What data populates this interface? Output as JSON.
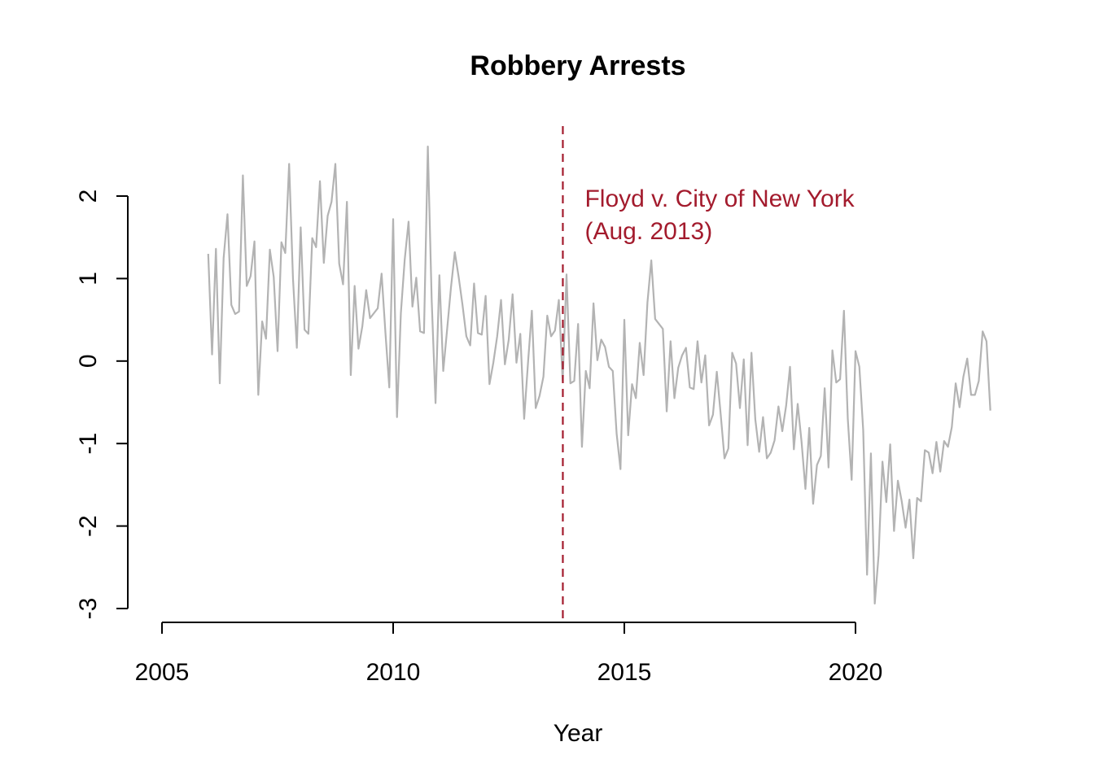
{
  "chart_data": {
    "type": "line",
    "title": "Robbery Arrests",
    "xlabel": "Year",
    "ylabel": "",
    "xlim": [
      2005,
      2020
    ],
    "ylim": [
      -3,
      2
    ],
    "x_ticks": [
      2005,
      2010,
      2015,
      2020
    ],
    "y_ticks": [
      -3,
      -2,
      -1,
      0,
      1,
      2
    ],
    "grid": false,
    "legend": "none",
    "series": [
      {
        "color": "#b3b3b3",
        "start": "2006-01",
        "frequency": "monthly",
        "values": [
          1.3,
          0.08,
          1.36,
          -0.27,
          1.25,
          1.78,
          0.68,
          0.57,
          0.6,
          2.25,
          0.91,
          1.03,
          1.45,
          -0.41,
          0.48,
          0.27,
          1.35,
          1.02,
          0.12,
          1.44,
          1.31,
          2.39,
          1.0,
          0.16,
          1.62,
          0.38,
          0.33,
          1.49,
          1.38,
          2.18,
          1.19,
          1.76,
          1.93,
          2.39,
          1.18,
          0.93,
          1.93,
          -0.17,
          0.91,
          0.15,
          0.42,
          0.86,
          0.52,
          0.58,
          0.64,
          1.06,
          0.34,
          -0.32,
          1.72,
          -0.68,
          0.58,
          1.23,
          1.69,
          0.66,
          1.01,
          0.36,
          0.34,
          2.6,
          0.74,
          -0.51,
          1.04,
          -0.12,
          0.38,
          0.89,
          1.32,
          1.02,
          0.68,
          0.3,
          0.19,
          0.94,
          0.34,
          0.32,
          0.79,
          -0.28,
          -0.02,
          0.3,
          0.74,
          -0.04,
          0.26,
          0.81,
          -0.02,
          0.33,
          -0.7,
          -0.02,
          0.61,
          -0.57,
          -0.42,
          -0.19,
          0.55,
          0.3,
          0.37,
          0.74,
          -0.24,
          1.05,
          -0.27,
          -0.24,
          0.45,
          -1.04,
          -0.12,
          -0.33,
          0.7,
          0.01,
          0.26,
          0.17,
          -0.07,
          -0.12,
          -0.88,
          -1.31,
          0.5,
          -0.9,
          -0.28,
          -0.45,
          0.22,
          -0.17,
          0.71,
          1.22,
          0.51,
          0.45,
          0.39,
          -0.61,
          0.24,
          -0.45,
          -0.08,
          0.07,
          0.16,
          -0.32,
          -0.34,
          0.24,
          -0.26,
          0.07,
          -0.78,
          -0.65,
          -0.13,
          -0.64,
          -1.18,
          -1.06,
          0.1,
          -0.03,
          -0.57,
          0.02,
          -1.02,
          0.1,
          -0.71,
          -1.1,
          -0.68,
          -1.18,
          -1.11,
          -0.96,
          -0.55,
          -0.85,
          -0.54,
          -0.07,
          -1.07,
          -0.52,
          -0.98,
          -1.55,
          -0.81,
          -1.73,
          -1.26,
          -1.15,
          -0.33,
          -1.29,
          0.13,
          -0.26,
          -0.22,
          0.61,
          -0.7,
          -1.44,
          0.12,
          -0.07,
          -0.84,
          -2.59,
          -1.12,
          -2.94,
          -2.35,
          -1.22,
          -1.71,
          -1.01,
          -2.06,
          -1.45,
          -1.7,
          -2.02,
          -1.68,
          -2.39,
          -1.66,
          -1.7,
          -1.08,
          -1.11,
          -1.36,
          -0.98,
          -1.34,
          -0.97,
          -1.04,
          -0.8,
          -0.27,
          -0.56,
          -0.19,
          0.03,
          -0.41,
          -0.41,
          -0.24,
          0.36,
          0.24,
          -0.6
        ]
      }
    ],
    "annotations": [
      {
        "x": 2013.67,
        "lines": [
          "Floyd v. City of New York",
          "(Aug. 2013)"
        ],
        "color": "#a31b2d"
      }
    ]
  }
}
